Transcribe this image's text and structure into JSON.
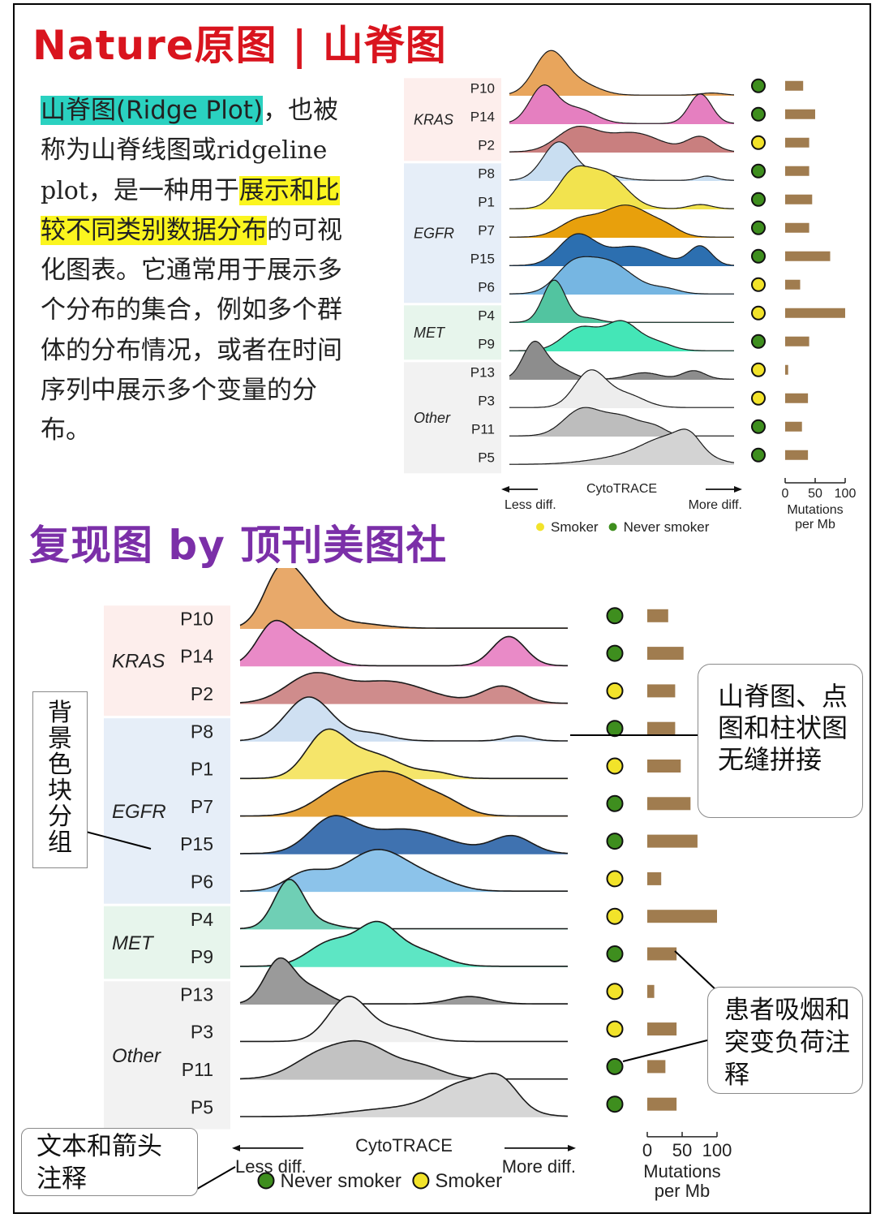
{
  "heading_original": "Nature原图 | 山脊图",
  "heading_recreated": "复现图 by 顶刊美图社",
  "intro": {
    "p1": "山脊图(Ridge Plot)",
    "p2": "，也被称为",
    "p3": "山脊线图或",
    "p4": "ridgeline plot",
    "p5": "，是一种用于",
    "p6": "展示和比较不同类别数据分布",
    "p7": "的可视化图表。它通常用于展示多个分布的集合，例如多个群体的分布情况，或者在时间序列中展示多个变量的分布。"
  },
  "callouts": {
    "bg_groups": "背景色块分组",
    "seamless": "山脊图、点图和柱状图无缝拼接",
    "annotation": "患者吸烟和突变负荷注释",
    "arrows": "文本和箭头注释"
  },
  "colors": {
    "smoker": "#f2e32a",
    "never_smoker": "#3e8e1e",
    "bar": "#a07c4f",
    "kras_bg": "#fdeeec",
    "egfr_bg": "#e6eef8",
    "met_bg": "#e7f5ec",
    "other_bg": "#f2f2f2"
  },
  "chart_data": [
    {
      "id": "original",
      "type": "ridgeline",
      "xlabel": "CytoTRACE",
      "x_left_label": "Less diff.",
      "x_right_label": "More diff.",
      "xlim": [
        0,
        1
      ],
      "legend": [
        {
          "label": "Smoker",
          "color": "#f2e32a"
        },
        {
          "label": "Never smoker",
          "color": "#3e8e1e"
        }
      ],
      "groups": [
        {
          "name": "KRAS",
          "patients": [
            "P10",
            "P14",
            "P2"
          ],
          "bg": "#fdeeec"
        },
        {
          "name": "EGFR",
          "patients": [
            "P8",
            "P1",
            "P7",
            "P15",
            "P6"
          ],
          "bg": "#e6eef8"
        },
        {
          "name": "MET",
          "patients": [
            "P4",
            "P9"
          ],
          "bg": "#e7f5ec"
        },
        {
          "name": "Other",
          "patients": [
            "P13",
            "P3",
            "P11",
            "P5"
          ],
          "bg": "#f2f2f2"
        }
      ],
      "bar_axis": {
        "ticks": [
          0,
          50,
          100
        ],
        "label": "Mutations per Mb",
        "max": 100
      },
      "series": [
        {
          "name": "P10",
          "color": "#e8a55c",
          "smoker": false,
          "mutations": 30,
          "peaks": [
            [
              0.18,
              1.0,
              0.07
            ],
            [
              0.32,
              0.25,
              0.08
            ],
            [
              0.9,
              0.05,
              0.05
            ]
          ]
        },
        {
          "name": "P14",
          "color": "#e57fc0",
          "smoker": false,
          "mutations": 50,
          "peaks": [
            [
              0.15,
              0.85,
              0.06
            ],
            [
              0.3,
              0.35,
              0.08
            ],
            [
              0.85,
              0.7,
              0.05
            ]
          ]
        },
        {
          "name": "P2",
          "color": "#c97f7f",
          "smoker": true,
          "mutations": 40,
          "peaks": [
            [
              0.3,
              0.55,
              0.09
            ],
            [
              0.55,
              0.45,
              0.12
            ],
            [
              0.85,
              0.35,
              0.06
            ]
          ]
        },
        {
          "name": "P8",
          "color": "#c9def1",
          "smoker": false,
          "mutations": 40,
          "peaks": [
            [
              0.22,
              0.9,
              0.07
            ],
            [
              0.4,
              0.15,
              0.08
            ],
            [
              0.88,
              0.1,
              0.04
            ]
          ]
        },
        {
          "name": "P1",
          "color": "#f2e34e",
          "smoker": false,
          "mutations": 45,
          "peaks": [
            [
              0.28,
              0.75,
              0.07
            ],
            [
              0.43,
              0.8,
              0.09
            ],
            [
              0.85,
              0.1,
              0.05
            ]
          ]
        },
        {
          "name": "P7",
          "color": "#e8a00c",
          "smoker": false,
          "mutations": 40,
          "peaks": [
            [
              0.3,
              0.35,
              0.08
            ],
            [
              0.52,
              0.75,
              0.11
            ],
            [
              0.7,
              0.15,
              0.06
            ]
          ]
        },
        {
          "name": "P15",
          "color": "#2c6fb0",
          "smoker": false,
          "mutations": 75,
          "peaks": [
            [
              0.3,
              0.7,
              0.08
            ],
            [
              0.55,
              0.45,
              0.12
            ],
            [
              0.85,
              0.45,
              0.05
            ]
          ]
        },
        {
          "name": "P6",
          "color": "#76b6e2",
          "smoker": true,
          "mutations": 25,
          "peaks": [
            [
              0.27,
              0.4,
              0.07
            ],
            [
              0.42,
              0.8,
              0.12
            ],
            [
              0.7,
              0.1,
              0.06
            ]
          ]
        },
        {
          "name": "P4",
          "color": "#52c4a0",
          "smoker": true,
          "mutations": 100,
          "peaks": [
            [
              0.2,
              1.0,
              0.05
            ],
            [
              0.35,
              0.1,
              0.05
            ]
          ]
        },
        {
          "name": "P9",
          "color": "#44e6b7",
          "smoker": false,
          "mutations": 40,
          "peaks": [
            [
              0.32,
              0.55,
              0.08
            ],
            [
              0.5,
              0.65,
              0.07
            ],
            [
              0.65,
              0.2,
              0.07
            ]
          ]
        },
        {
          "name": "P13",
          "color": "#8d8d8d",
          "smoker": true,
          "mutations": 5,
          "peaks": [
            [
              0.11,
              0.85,
              0.05
            ],
            [
              0.22,
              0.25,
              0.06
            ],
            [
              0.6,
              0.15,
              0.07
            ],
            [
              0.82,
              0.2,
              0.05
            ]
          ]
        },
        {
          "name": "P3",
          "color": "#ededed",
          "smoker": true,
          "mutations": 38,
          "peaks": [
            [
              0.36,
              0.85,
              0.07
            ],
            [
              0.52,
              0.3,
              0.08
            ]
          ]
        },
        {
          "name": "P11",
          "color": "#bdbdbd",
          "smoker": false,
          "mutations": 28,
          "peaks": [
            [
              0.32,
              0.6,
              0.08
            ],
            [
              0.5,
              0.45,
              0.09
            ],
            [
              0.65,
              0.15,
              0.05
            ]
          ]
        },
        {
          "name": "P5",
          "color": "#d3d3d3",
          "smoker": false,
          "mutations": 38,
          "peaks": [
            [
              0.5,
              0.15,
              0.15
            ],
            [
              0.72,
              0.6,
              0.12
            ],
            [
              0.8,
              0.3,
              0.05
            ]
          ]
        }
      ]
    },
    {
      "id": "recreated",
      "type": "ridgeline",
      "xlabel": "CytoTRACE",
      "x_left_label": "Less diff.",
      "x_right_label": "More diff.",
      "xlim": [
        0,
        1
      ],
      "legend": [
        {
          "label": "Never smoker",
          "color": "#3e8e1e"
        },
        {
          "label": "Smoker",
          "color": "#f2e32a"
        }
      ],
      "groups": [
        {
          "name": "KRAS",
          "patients": [
            "P10",
            "P14",
            "P2"
          ],
          "bg": "#fdeeec"
        },
        {
          "name": "EGFR",
          "patients": [
            "P8",
            "P1",
            "P7",
            "P15",
            "P6"
          ],
          "bg": "#e6eef8"
        },
        {
          "name": "MET",
          "patients": [
            "P4",
            "P9"
          ],
          "bg": "#e7f5ec"
        },
        {
          "name": "Other",
          "patients": [
            "P13",
            "P3",
            "P11",
            "P5"
          ],
          "bg": "#f2f2f2"
        }
      ],
      "bar_axis": {
        "ticks": [
          0,
          50,
          100
        ],
        "label": "Mutations per Mb",
        "max": 100
      },
      "series": [
        {
          "name": "P10",
          "color": "#e8a96a",
          "smoker": false,
          "mutations": 30,
          "peaks": [
            [
              0.12,
              1.0,
              0.05
            ],
            [
              0.2,
              0.7,
              0.06
            ],
            [
              0.35,
              0.1,
              0.08
            ]
          ]
        },
        {
          "name": "P14",
          "color": "#e98ac7",
          "smoker": false,
          "mutations": 52,
          "peaks": [
            [
              0.1,
              0.8,
              0.05
            ],
            [
              0.2,
              0.45,
              0.06
            ],
            [
              0.82,
              0.6,
              0.05
            ]
          ]
        },
        {
          "name": "P2",
          "color": "#cf8c8c",
          "smoker": true,
          "mutations": 40,
          "peaks": [
            [
              0.22,
              0.55,
              0.08
            ],
            [
              0.45,
              0.45,
              0.12
            ],
            [
              0.8,
              0.35,
              0.06
            ]
          ]
        },
        {
          "name": "P8",
          "color": "#cfe0f2",
          "smoker": false,
          "mutations": 40,
          "peaks": [
            [
              0.21,
              0.9,
              0.07
            ],
            [
              0.4,
              0.15,
              0.06
            ],
            [
              0.85,
              0.1,
              0.04
            ]
          ]
        },
        {
          "name": "P1",
          "color": "#f5e56a",
          "smoker": true,
          "mutations": 48,
          "peaks": [
            [
              0.26,
              0.85,
              0.06
            ],
            [
              0.4,
              0.5,
              0.09
            ],
            [
              0.6,
              0.1,
              0.05
            ]
          ]
        },
        {
          "name": "P7",
          "color": "#e5a33a",
          "smoker": false,
          "mutations": 62,
          "peaks": [
            [
              0.3,
              0.4,
              0.08
            ],
            [
              0.46,
              0.85,
              0.1
            ],
            [
              0.63,
              0.2,
              0.06
            ]
          ]
        },
        {
          "name": "P15",
          "color": "#3f72b0",
          "smoker": false,
          "mutations": 72,
          "peaks": [
            [
              0.28,
              0.65,
              0.07
            ],
            [
              0.5,
              0.5,
              0.13
            ],
            [
              0.83,
              0.35,
              0.06
            ]
          ]
        },
        {
          "name": "P6",
          "color": "#8cc3ea",
          "smoker": true,
          "mutations": 20,
          "peaks": [
            [
              0.2,
              0.35,
              0.06
            ],
            [
              0.42,
              0.85,
              0.1
            ],
            [
              0.6,
              0.15,
              0.07
            ]
          ]
        },
        {
          "name": "P4",
          "color": "#6fcfb5",
          "smoker": true,
          "mutations": 100,
          "peaks": [
            [
              0.15,
              1.0,
              0.045
            ],
            [
              0.25,
              0.1,
              0.05
            ]
          ]
        },
        {
          "name": "P9",
          "color": "#5de6c4",
          "smoker": false,
          "mutations": 42,
          "peaks": [
            [
              0.28,
              0.5,
              0.07
            ],
            [
              0.42,
              0.8,
              0.06
            ],
            [
              0.55,
              0.3,
              0.07
            ]
          ]
        },
        {
          "name": "P13",
          "color": "#9a9a9a",
          "smoker": true,
          "mutations": 10,
          "peaks": [
            [
              0.12,
              0.9,
              0.045
            ],
            [
              0.22,
              0.3,
              0.05
            ],
            [
              0.7,
              0.15,
              0.06
            ]
          ]
        },
        {
          "name": "P3",
          "color": "#efefef",
          "smoker": true,
          "mutations": 42,
          "peaks": [
            [
              0.33,
              0.9,
              0.06
            ],
            [
              0.48,
              0.25,
              0.07
            ]
          ]
        },
        {
          "name": "P11",
          "color": "#c2c2c2",
          "smoker": false,
          "mutations": 26,
          "peaks": [
            [
              0.24,
              0.45,
              0.08
            ],
            [
              0.38,
              0.65,
              0.08
            ],
            [
              0.55,
              0.25,
              0.07
            ]
          ]
        },
        {
          "name": "P5",
          "color": "#d6d6d6",
          "smoker": false,
          "mutations": 42,
          "peaks": [
            [
              0.45,
              0.15,
              0.12
            ],
            [
              0.7,
              0.7,
              0.1
            ],
            [
              0.8,
              0.4,
              0.05
            ]
          ]
        }
      ]
    }
  ]
}
